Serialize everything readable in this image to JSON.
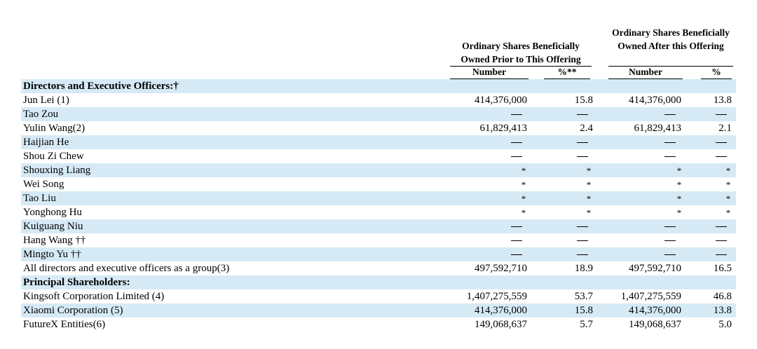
{
  "header": {
    "prior_title": "Ordinary Shares Beneficially Owned Prior to This Offering",
    "after_title": "Ordinary Shares Beneficially Owned After this Offering",
    "col_number": "Number",
    "col_percent_prior": "%**",
    "col_percent_after": "%"
  },
  "rows": [
    {
      "label": "Directors and Executive Officers:†",
      "bold": true
    },
    {
      "label": "Jun Lei (1)",
      "n1": "414,376,000",
      "p1": "15.8",
      "n2": "414,376,000",
      "p2": "13.8"
    },
    {
      "label": "Tao Zou",
      "n1": "—",
      "p1": "—",
      "n2": "—",
      "p2": "—"
    },
    {
      "label": "Yulin Wang(2)",
      "n1": "61,829,413",
      "p1": "2.4",
      "n2": "61,829,413",
      "p2": "2.1"
    },
    {
      "label": "Haijian He",
      "n1": "—",
      "p1": "—",
      "n2": "—",
      "p2": "—"
    },
    {
      "label": "Shou Zi Chew",
      "n1": "—",
      "p1": "—",
      "n2": "—",
      "p2": "—"
    },
    {
      "label": "Shouxing Liang",
      "n1": "*",
      "p1": "*",
      "n2": "*",
      "p2": "*"
    },
    {
      "label": "Wei Song",
      "n1": "*",
      "p1": "*",
      "n2": "*",
      "p2": "*"
    },
    {
      "label": "Tao Liu",
      "n1": "*",
      "p1": "*",
      "n2": "*",
      "p2": "*"
    },
    {
      "label": "Yonghong Hu",
      "n1": "*",
      "p1": "*",
      "n2": "*",
      "p2": "*"
    },
    {
      "label": "Kuiguang Niu",
      "n1": "—",
      "p1": "—",
      "n2": "—",
      "p2": "—"
    },
    {
      "label": "Hang Wang ††",
      "n1": "—",
      "p1": "—",
      "n2": "—",
      "p2": "—"
    },
    {
      "label": "Mingto Yu ††",
      "n1": "—",
      "p1": "—",
      "n2": "—",
      "p2": "—"
    },
    {
      "label": "All directors and executive officers as a group(3)",
      "n1": "497,592,710",
      "p1": "18.9",
      "n2": "497,592,710",
      "p2": "16.5"
    },
    {
      "label": "Principal Shareholders:",
      "bold": true
    },
    {
      "label": "Kingsoft Corporation Limited (4)",
      "n1": "1,407,275,559",
      "p1": "53.7",
      "n2": "1,407,275,559",
      "p2": "46.8"
    },
    {
      "label": "Xiaomi Corporation (5)",
      "n1": "414,376,000",
      "p1": "15.8",
      "n2": "414,376,000",
      "p2": "13.8"
    },
    {
      "label": "FutureX Entities(6)",
      "n1": "149,068,637",
      "p1": "5.7",
      "n2": "149,068,637",
      "p2": "5.0"
    }
  ],
  "colors": {
    "shade": "#d6eaf6"
  }
}
